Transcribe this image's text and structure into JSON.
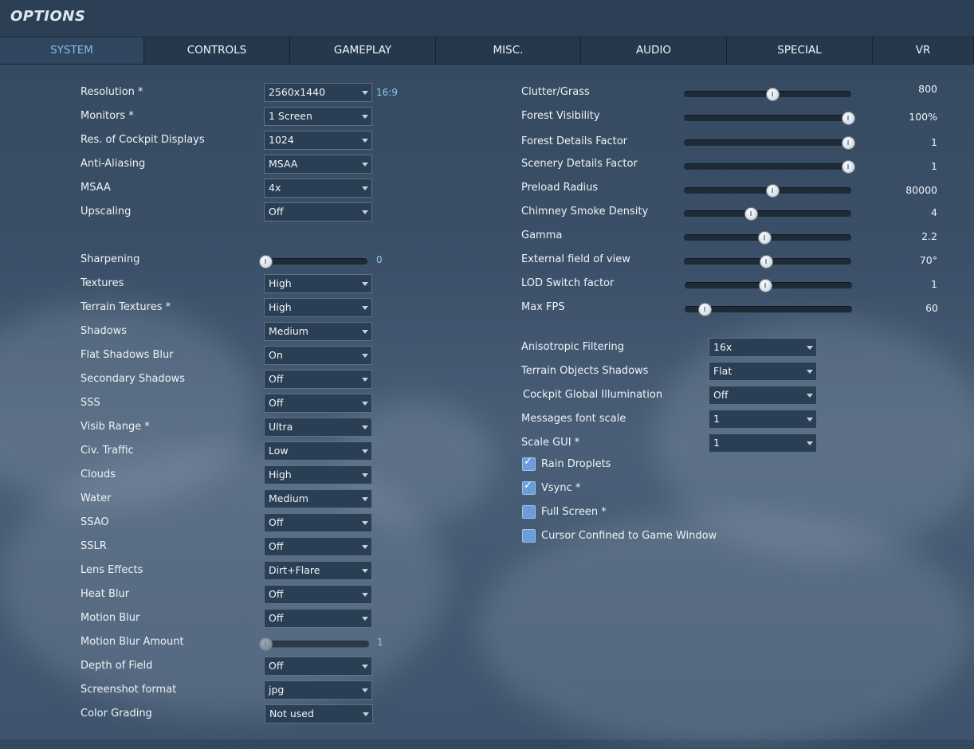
{
  "window": {
    "title": "OPTIONS"
  },
  "tabs": [
    {
      "label": "SYSTEM",
      "active": true
    },
    {
      "label": "CONTROLS"
    },
    {
      "label": "GAMEPLAY"
    },
    {
      "label": "MISC."
    },
    {
      "label": "AUDIO"
    },
    {
      "label": "SPECIAL"
    },
    {
      "label": "VR"
    }
  ],
  "left": {
    "resolution": {
      "label": "Resolution *",
      "value": "2560x1440",
      "aspect": "16:9"
    },
    "monitors": {
      "label": "Monitors *",
      "value": "1 Screen"
    },
    "cockpit_displays": {
      "label": "Res. of Cockpit Displays",
      "value": "1024"
    },
    "anti_aliasing": {
      "label": "Anti-Aliasing",
      "value": "MSAA"
    },
    "msaa": {
      "label": "MSAA",
      "value": "4x"
    },
    "upscaling": {
      "label": "Upscaling",
      "value": "Off"
    },
    "sharpening": {
      "label": "Sharpening",
      "value": "0",
      "level": 0
    },
    "textures": {
      "label": "Textures",
      "value": "High"
    },
    "terrain_textures": {
      "label": "Terrain Textures *",
      "value": "High"
    },
    "shadows": {
      "label": "Shadows",
      "value": "Medium"
    },
    "flat_shadows_blur": {
      "label": "Flat Shadows Blur",
      "value": "On"
    },
    "secondary_shadows": {
      "label": "Secondary Shadows",
      "value": "Off"
    },
    "sss": {
      "label": "SSS",
      "value": "Off"
    },
    "visib_range": {
      "label": "Visib Range *",
      "value": "Ultra"
    },
    "civ_traffic": {
      "label": "Civ. Traffic",
      "value": "Low"
    },
    "clouds": {
      "label": "Clouds",
      "value": "High"
    },
    "water": {
      "label": "Water",
      "value": "Medium"
    },
    "ssao": {
      "label": "SSAO",
      "value": "Off"
    },
    "sslr": {
      "label": "SSLR",
      "value": "Off"
    },
    "lens_effects": {
      "label": "Lens Effects",
      "value": "Dirt+Flare"
    },
    "heat_blur": {
      "label": "Heat Blur",
      "value": "Off"
    },
    "motion_blur": {
      "label": "Motion Blur",
      "value": "Off"
    },
    "motion_blur_amount": {
      "label": "Motion Blur Amount",
      "value": "1",
      "level": 0
    },
    "depth_of_field": {
      "label": "Depth of Field",
      "value": "Off"
    },
    "screenshot_format": {
      "label": "Screenshot format",
      "value": "jpg"
    },
    "color_grading": {
      "label": "Color Grading",
      "value": "Not used"
    }
  },
  "right": {
    "clutter_grass": {
      "label": "Clutter/Grass",
      "value": "800",
      "level": 0.53
    },
    "forest_visibility": {
      "label": "Forest Visibility",
      "value": "100%",
      "level": 0.98
    },
    "forest_details": {
      "label": "Forest Details Factor",
      "value": "1",
      "level": 0.98
    },
    "scenery_details": {
      "label": "Scenery Details Factor",
      "value": "1",
      "level": 0.98
    },
    "preload_radius": {
      "label": "Preload Radius",
      "value": "80000",
      "level": 0.53
    },
    "chimney_smoke": {
      "label": "Chimney Smoke Density",
      "value": "4",
      "level": 0.4
    },
    "gamma": {
      "label": "Gamma",
      "value": "2.2",
      "level": 0.48
    },
    "external_fov": {
      "label": "External field of view",
      "value": "70°",
      "level": 0.49
    },
    "lod_switch": {
      "label": "LOD Switch factor",
      "value": "1",
      "level": 0.48
    },
    "max_fps": {
      "label": "Max FPS",
      "value": "60",
      "level": 0.12
    },
    "anisotropic": {
      "label": "Anisotropic Filtering",
      "value": "16x"
    },
    "terrain_objects_shadows": {
      "label": "Terrain Objects Shadows",
      "value": "Flat"
    },
    "cockpit_gi": {
      "label": "Cockpit Global Illumination",
      "value": "Off"
    },
    "messages_font_scale": {
      "label": "Messages font scale",
      "value": "1"
    },
    "scale_gui": {
      "label": "Scale GUI *",
      "value": "1"
    },
    "rain_droplets": {
      "label": "Rain Droplets",
      "checked": true
    },
    "vsync": {
      "label": "Vsync *",
      "checked": true
    },
    "full_screen": {
      "label": "Full Screen *",
      "checked": false
    },
    "cursor_confined": {
      "label": "Cursor Confined to Game Window",
      "checked": false
    }
  }
}
